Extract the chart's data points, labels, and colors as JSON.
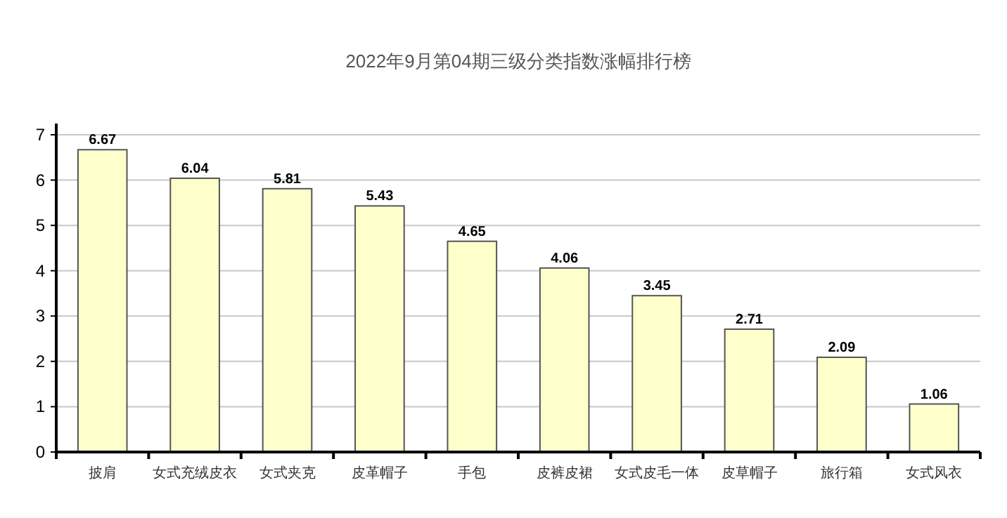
{
  "chart_data": {
    "type": "bar",
    "title": "2022年9月第04期三级分类指数涨幅排行榜",
    "categories": [
      "披肩",
      "女式充绒皮衣",
      "女式夹克",
      "皮革帽子",
      "手包",
      "皮裤皮裙",
      "女式皮毛一体",
      "皮草帽子",
      "旅行箱",
      "女式风衣"
    ],
    "values": [
      6.67,
      6.04,
      5.81,
      5.43,
      4.65,
      4.06,
      3.45,
      2.71,
      2.09,
      1.06
    ],
    "color": "#ffffcc",
    "ylim": [
      0,
      7
    ],
    "yticks": [
      0,
      1,
      2,
      3,
      4,
      5,
      6,
      7
    ],
    "grid": "y",
    "data_labels": true
  }
}
